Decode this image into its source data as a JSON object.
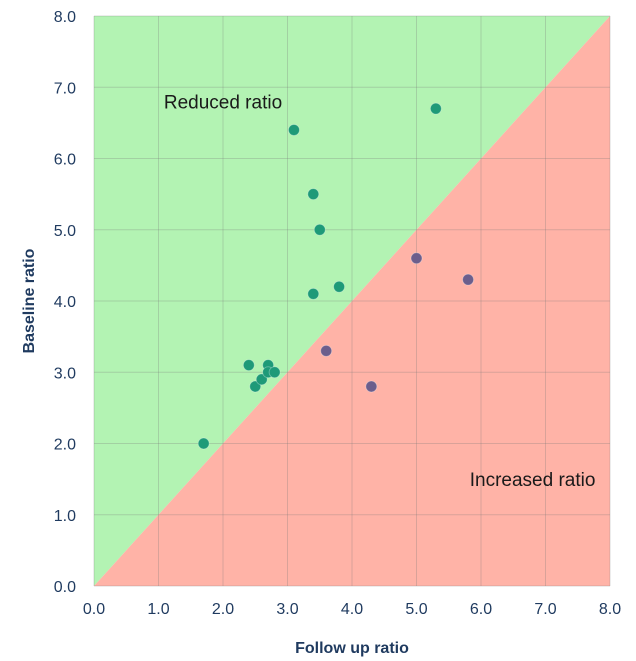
{
  "chart_data": {
    "type": "scatter",
    "title": "",
    "xlabel": "Follow up ratio",
    "ylabel": "Baseline ratio",
    "xlim": [
      0,
      8
    ],
    "ylim": [
      0,
      8
    ],
    "xticks": [
      "0.0",
      "1.0",
      "2.0",
      "3.0",
      "4.0",
      "5.0",
      "6.0",
      "7.0",
      "8.0"
    ],
    "yticks": [
      "0.0",
      "1.0",
      "2.0",
      "3.0",
      "4.0",
      "5.0",
      "6.0",
      "7.0",
      "8.0"
    ],
    "grid": true,
    "regions": [
      {
        "label": "Reduced ratio",
        "color": "#b3f3b3",
        "area": "above-diagonal",
        "label_at": [
          2.0,
          6.8
        ]
      },
      {
        "label": "Increased ratio",
        "color": "#ffb3a7",
        "area": "below-diagonal",
        "label_at": [
          6.8,
          1.5
        ]
      }
    ],
    "series": [
      {
        "color": "#1e9a78",
        "points": [
          [
            1.7,
            2.0
          ],
          [
            2.4,
            3.1
          ],
          [
            2.5,
            2.8
          ],
          [
            2.6,
            2.9
          ],
          [
            2.7,
            3.1
          ],
          [
            2.7,
            3.0
          ],
          [
            2.8,
            3.0
          ],
          [
            3.1,
            6.4
          ],
          [
            3.4,
            5.5
          ],
          [
            3.5,
            5.0
          ],
          [
            3.4,
            4.1
          ],
          [
            3.8,
            4.2
          ],
          [
            5.3,
            6.7
          ]
        ]
      },
      {
        "color": "#6c5e8c",
        "points": [
          [
            3.6,
            3.3
          ],
          [
            4.3,
            2.8
          ],
          [
            5.0,
            4.6
          ],
          [
            5.8,
            4.3
          ]
        ]
      }
    ]
  }
}
